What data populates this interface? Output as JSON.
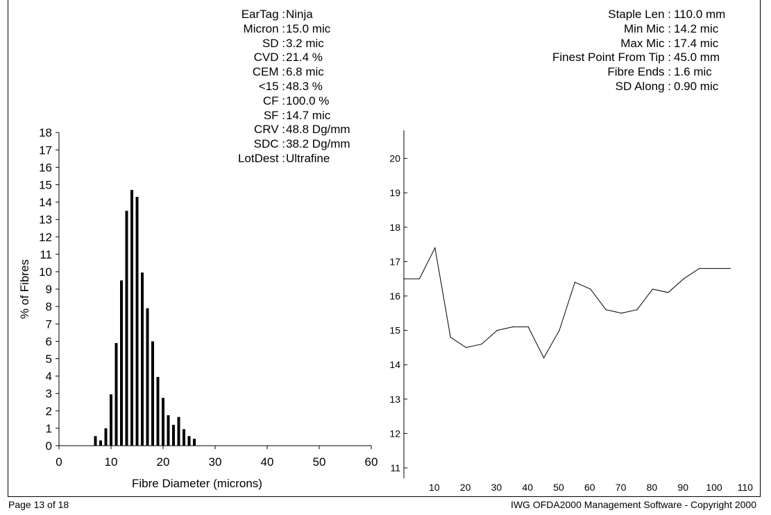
{
  "stats_left": [
    {
      "label": "EarTag :",
      "value": "Ninja"
    },
    {
      "label": "Micron :",
      "value": "15.0 mic"
    },
    {
      "label": "SD :",
      "value": "3.2 mic"
    },
    {
      "label": "CVD :",
      "value": "21.4 %"
    },
    {
      "label": "CEM :",
      "value": "6.8 mic"
    },
    {
      "label": "<15 :",
      "value": "48.3 %"
    },
    {
      "label": "CF :",
      "value": "100.0 %"
    },
    {
      "label": "SF :",
      "value": "14.7 mic"
    },
    {
      "label": "CRV :",
      "value": "48.8 Dg/mm"
    },
    {
      "label": "SDC :",
      "value": "38.2 Dg/mm"
    },
    {
      "label": "LotDest :",
      "value": "Ultrafine"
    }
  ],
  "stats_right": [
    {
      "label": "Staple Len :",
      "value": "110.0 mm"
    },
    {
      "label": "Min Mic :",
      "value": "14.2 mic"
    },
    {
      "label": "Max Mic :",
      "value": "17.4 mic"
    },
    {
      "label": "Finest Point From Tip :",
      "value": "45.0 mm"
    },
    {
      "label": "Fibre Ends :",
      "value": "1.6 mic"
    },
    {
      "label": "SD Along :",
      "value": "0.90 mic"
    }
  ],
  "footer": {
    "page": "Page 13 of 18",
    "copyright": "IWG OFDA2000 Management Software - Copyright 2000"
  },
  "chart_data": [
    {
      "type": "bar",
      "xlabel": "Fibre Diameter (microns)",
      "ylabel": "% of Fibres",
      "xlim": [
        0,
        60
      ],
      "ylim": [
        0,
        18
      ],
      "x_ticks": [
        0,
        10,
        20,
        30,
        40,
        50,
        60
      ],
      "y_ticks": [
        0,
        1,
        2,
        3,
        4,
        5,
        6,
        7,
        8,
        9,
        10,
        11,
        12,
        13,
        14,
        15,
        16,
        17,
        18
      ],
      "x": [
        7,
        8,
        9,
        10,
        11,
        12,
        13,
        14,
        15,
        16,
        17,
        18,
        19,
        20,
        21,
        22,
        23,
        24,
        25,
        26
      ],
      "values": [
        0.55,
        0.3,
        1.0,
        2.95,
        5.9,
        9.5,
        13.5,
        14.7,
        14.3,
        9.95,
        7.9,
        6.0,
        3.95,
        2.75,
        1.75,
        1.2,
        1.65,
        0.95,
        0.55,
        0.4
      ],
      "grid": false
    },
    {
      "type": "line",
      "xlim": [
        0,
        110
      ],
      "ylim": [
        11,
        21
      ],
      "x_ticks": [
        10,
        20,
        30,
        40,
        50,
        60,
        70,
        80,
        90,
        100,
        110
      ],
      "y_ticks": [
        11,
        12,
        13,
        14,
        15,
        16,
        17,
        18,
        19,
        20
      ],
      "x": [
        0,
        5,
        10,
        15,
        20,
        25,
        30,
        35,
        40,
        45,
        50,
        55,
        60,
        65,
        70,
        75,
        80,
        85,
        90,
        95,
        100,
        105
      ],
      "values": [
        16.5,
        16.5,
        17.4,
        14.8,
        14.5,
        14.6,
        15.0,
        15.1,
        15.1,
        14.2,
        15.0,
        16.4,
        16.2,
        15.6,
        15.5,
        15.6,
        16.2,
        16.1,
        16.5,
        16.8,
        16.8,
        16.8
      ],
      "grid": false
    }
  ]
}
